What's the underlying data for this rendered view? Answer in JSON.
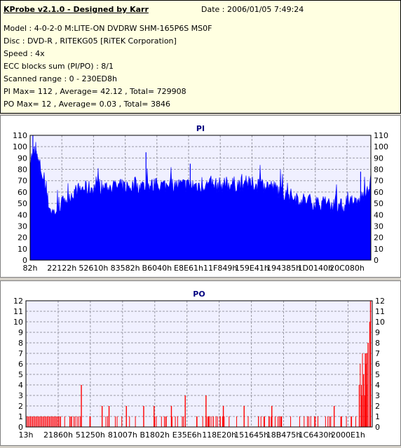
{
  "info": {
    "app_title": "KProbe v2.1.0 - Designed by Karr",
    "date": "Date : 2006/01/05 7:49:24",
    "lines": [
      "Model : 4-0-2-0 M:LITE-ON DVDRW SHM-165P6S MS0F",
      "Disc : DVD-R , RITEKG05 [RiTEK Corporation]",
      "Speed : 4x",
      "ECC blocks sum (PI/PO) : 8/1",
      "Scanned range : 0 - 230ED8h",
      "PI Max= 112 , Average= 42.12 , Total= 729908",
      "PO Max= 12 , Average= 0.03 , Total= 3846"
    ]
  },
  "colors": {
    "pi": "#0000ff",
    "po": "#ff0000",
    "plot_bg": "#f0f0ff",
    "grid": "#9a9aa6",
    "title": "#000080"
  },
  "chart_data": [
    {
      "type": "area",
      "title": "PI",
      "ylim": [
        0,
        110
      ],
      "yticks": [
        0,
        10,
        20,
        30,
        40,
        50,
        60,
        70,
        80,
        90,
        100,
        110
      ],
      "xticks": [
        "82h",
        "22122h",
        "52610h",
        "83582h",
        "B6040h",
        "E8E61h",
        "11F849h",
        "159E41h",
        "194385h",
        "1D0140h",
        "20C080h"
      ],
      "grid": true,
      "profile": {
        "x": [
          0,
          0.01,
          0.02,
          0.03,
          0.04,
          0.05,
          0.06,
          0.07,
          0.08,
          0.1,
          0.12,
          0.15,
          0.2,
          0.3,
          0.4,
          0.5,
          0.55,
          0.6,
          0.65,
          0.7,
          0.72,
          0.75,
          0.8,
          0.85,
          0.9,
          0.93,
          0.96,
          0.98,
          1.0
        ],
        "y": [
          88,
          95,
          90,
          82,
          70,
          55,
          44,
          42,
          45,
          52,
          58,
          63,
          64,
          65,
          66,
          66,
          66,
          67,
          67,
          66,
          63,
          58,
          53,
          50,
          48,
          47,
          50,
          58,
          70
        ]
      },
      "peaks": [
        {
          "x": 0.008,
          "y": 112
        },
        {
          "x": 0.012,
          "y": 100
        },
        {
          "x": 0.018,
          "y": 96
        },
        {
          "x": 0.34,
          "y": 95
        },
        {
          "x": 0.47,
          "y": 85
        },
        {
          "x": 0.97,
          "y": 78
        }
      ]
    },
    {
      "type": "bar",
      "title": "PO",
      "ylim": [
        0,
        12
      ],
      "yticks": [
        0,
        1,
        2,
        3,
        4,
        5,
        6,
        7,
        8,
        9,
        10,
        11,
        12
      ],
      "xticks": [
        "13h",
        "21860h",
        "51250h",
        "81007h",
        "B1802h",
        "E35E6h",
        "118E20h",
        "151645h",
        "18B475h",
        "1C6430h",
        "2000E1h"
      ],
      "grid": true,
      "spikes": [
        {
          "x": 0.16,
          "y": 4
        },
        {
          "x": 0.46,
          "y": 3
        },
        {
          "x": 0.52,
          "y": 3
        },
        {
          "x": 0.22,
          "y": 2
        },
        {
          "x": 0.24,
          "y": 2
        },
        {
          "x": 0.29,
          "y": 2
        },
        {
          "x": 0.34,
          "y": 2
        },
        {
          "x": 0.37,
          "y": 2
        },
        {
          "x": 0.42,
          "y": 2
        },
        {
          "x": 0.57,
          "y": 2
        },
        {
          "x": 0.63,
          "y": 2
        },
        {
          "x": 0.71,
          "y": 2
        },
        {
          "x": 0.89,
          "y": 2
        },
        {
          "x": 0.995,
          "y": 12
        },
        {
          "x": 0.993,
          "y": 10
        },
        {
          "x": 0.988,
          "y": 8
        },
        {
          "x": 0.984,
          "y": 7
        },
        {
          "x": 0.98,
          "y": 7
        },
        {
          "x": 0.975,
          "y": 5
        },
        {
          "x": 0.97,
          "y": 3
        }
      ],
      "dense_ranges": [
        {
          "from": 0.0,
          "to": 0.1,
          "y": 1
        },
        {
          "from": 0.962,
          "to": 0.985,
          "y": 6
        }
      ]
    }
  ]
}
